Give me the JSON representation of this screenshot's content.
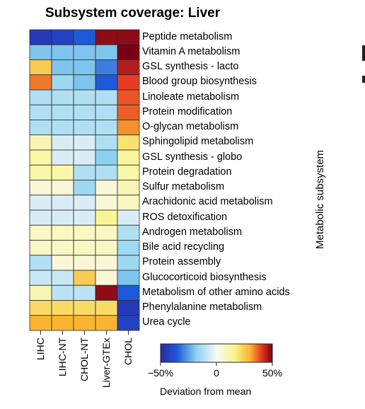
{
  "chart_data": {
    "type": "heatmap",
    "title": "Subsystem coverage: Liver",
    "columns": [
      "LIHC",
      "LIHC-NT",
      "CHOL-NT",
      "Liver-GTEx",
      "CHOL"
    ],
    "rows": [
      "Peptide metabolism",
      "Vitamin A metabolism",
      "GSL synthesis - lacto",
      "Blood group biosynthesis",
      "Linoleate metabolism",
      "Protein modification",
      "O-glycan metabolism",
      "Sphingolipid metabolism",
      "GSL synthesis - globo",
      "Protein degradation",
      "Sulfur metabolism",
      "Arachidonic acid metabolism",
      "ROS detoxification",
      "Androgen metabolism",
      "Bile acid recycling",
      "Protein assembly",
      "Glucocorticoid biosynthesis",
      "Metabolism of other amino acids",
      "Phenylalanine metabolism",
      "Urea cycle"
    ],
    "values": [
      [
        -45,
        -42,
        -35,
        48,
        48
      ],
      [
        -20,
        -20,
        -20,
        -20,
        50
      ],
      [
        25,
        -20,
        -20,
        -30,
        45
      ],
      [
        35,
        -15,
        -20,
        -35,
        40
      ],
      [
        -12,
        -12,
        -12,
        -12,
        38
      ],
      [
        -12,
        -12,
        -12,
        -12,
        37
      ],
      [
        -12,
        -12,
        -12,
        -12,
        33
      ],
      [
        10,
        -5,
        -5,
        -12,
        20
      ],
      [
        12,
        -5,
        -5,
        -18,
        14
      ],
      [
        12,
        12,
        -12,
        -12,
        12
      ],
      [
        5,
        5,
        -15,
        5,
        10
      ],
      [
        -5,
        -5,
        -5,
        5,
        8
      ],
      [
        -5,
        -5,
        -5,
        15,
        -5
      ],
      [
        8,
        8,
        8,
        8,
        -12
      ],
      [
        8,
        8,
        8,
        8,
        -15
      ],
      [
        -12,
        5,
        5,
        5,
        -15
      ],
      [
        -8,
        -8,
        25,
        5,
        -20
      ],
      [
        10,
        -10,
        -10,
        48,
        -35
      ],
      [
        22,
        22,
        22,
        22,
        -45
      ],
      [
        30,
        30,
        30,
        30,
        -42
      ]
    ],
    "colorbar": {
      "min": -50,
      "max": 50,
      "tick_labels": [
        "−50%",
        "0",
        "50%"
      ],
      "tick_values": [
        -50,
        0,
        50
      ],
      "label": "Deviation from mean"
    },
    "y_axis_side_label": "Metabolic subsystem"
  }
}
